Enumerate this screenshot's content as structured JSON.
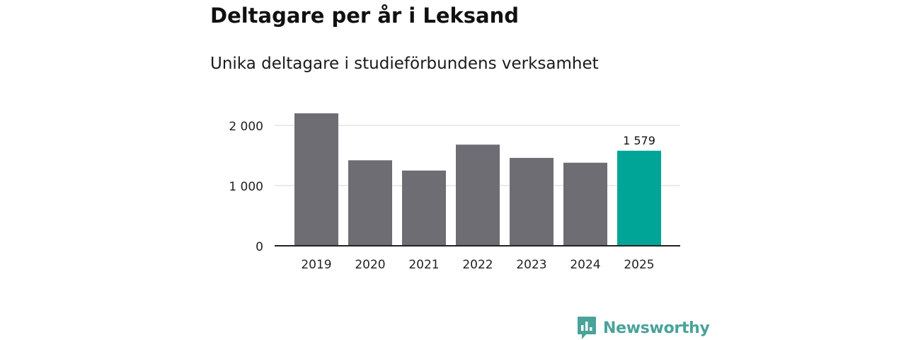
{
  "header": {
    "title": "Deltagare per år i Leksand",
    "subtitle": "Unika deltagare i studieförbundens verksamhet"
  },
  "chart_data": {
    "type": "bar",
    "title": "Deltagare per år i Leksand",
    "subtitle": "Unika deltagare i studieförbundens verksamhet",
    "categories": [
      "2019",
      "2020",
      "2021",
      "2022",
      "2023",
      "2024",
      "2025"
    ],
    "values": [
      2200,
      1420,
      1250,
      1680,
      1460,
      1380,
      1579
    ],
    "highlight_index": 6,
    "data_labels": [
      {
        "category": "2025",
        "text": "1 579"
      }
    ],
    "y_ticks": [
      {
        "value": 0,
        "label": "0"
      },
      {
        "value": 1000,
        "label": "1 000"
      },
      {
        "value": 2000,
        "label": "2 000"
      }
    ],
    "ylim": [
      0,
      2000
    ],
    "grid": true,
    "xlabel": "",
    "ylabel": "",
    "colors": {
      "bar": "#6e6d73",
      "highlight": "#00a598",
      "grid": "#d6d6d6",
      "axis": "#222222"
    }
  },
  "brand": {
    "name": "Newsworthy",
    "icon": "newsworthy-logo-icon",
    "color": "#4aa39a"
  }
}
